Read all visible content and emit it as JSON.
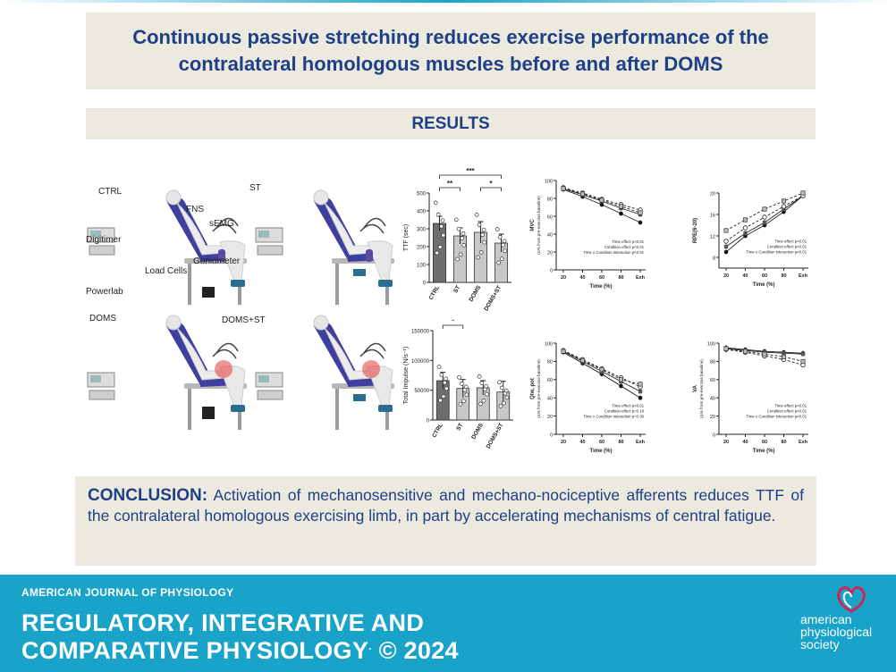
{
  "title": "Continuous passive stretching reduces exercise performance of the contralateral homologous muscles before and after DOMS",
  "results_heading": "RESULTS",
  "illustration": {
    "panels": [
      "CTRL",
      "ST",
      "DOMS",
      "DOMS+ST"
    ],
    "labels": [
      "FNS",
      "sEMG",
      "Digitimer",
      "Goniometer",
      "Load Cells",
      "Powerlab"
    ]
  },
  "conclusion": {
    "lead": "CONCLUSION:",
    "text": "Activation of mechanosensitive and mechano-nociceptive afferents reduces TTF of the contralateral homologous exercising limb, in part by accelerating mechanisms of central fatigue."
  },
  "footer": {
    "journal": "AMERICAN JOURNAL OF PHYSIOLOGY",
    "line1": "REGULATORY, INTEGRATIVE AND",
    "line2": "COMPARATIVE PHYSIOLOGY",
    "year": "© 2024",
    "society": [
      "american",
      "physiological",
      "society"
    ]
  },
  "colors": {
    "navy": "#1f3f86",
    "banner": "#eceadf",
    "footer": "#1aa3c9",
    "bar_dark": "#6e6e6e",
    "bar_light": "#c8c8c8",
    "limb_purple": "#5a4aa0"
  },
  "chart_data": [
    {
      "type": "bar",
      "id": "ttf",
      "ylabel": "TTF (sec)",
      "categories": [
        "CTRL",
        "ST",
        "DOMS",
        "DOMS+ST"
      ],
      "values": [
        330,
        260,
        280,
        220
      ],
      "errors": [
        40,
        45,
        60,
        50
      ],
      "ylim": [
        0,
        500
      ],
      "yticks": [
        0,
        100,
        200,
        300,
        400,
        500
      ],
      "significance": [
        {
          "from": 0,
          "to": 1,
          "label": "**",
          "level": 1
        },
        {
          "from": 2,
          "to": 3,
          "label": "*",
          "level": 1
        },
        {
          "from": 0,
          "to": 3,
          "label": "***",
          "level": 2
        }
      ]
    },
    {
      "type": "bar",
      "id": "impulse",
      "ylabel": "Total Impulse (N/s⁻¹)",
      "categories": [
        "CTRL",
        "ST",
        "DOMS",
        "DOMS+ST"
      ],
      "values": [
        66000,
        53000,
        54000,
        47000
      ],
      "errors": [
        14000,
        15000,
        12000,
        18000
      ],
      "ylim": [
        0,
        150000
      ],
      "yticks": [
        0,
        50000,
        100000,
        150000
      ],
      "significance": [
        {
          "from": 0,
          "to": 1,
          "label": "*",
          "level": 1
        },
        {
          "from": 0,
          "to": 3,
          "label": "**",
          "level": 2
        }
      ]
    },
    {
      "type": "line",
      "id": "mvc",
      "ylabel": "MVC",
      "ylabel2": "(Δ% from pre-exercise baseline)",
      "xlabel": "Time (%)",
      "x": [
        "20",
        "40",
        "60",
        "80",
        "Exh"
      ],
      "ylim": [
        0,
        100
      ],
      "yticks": [
        0,
        20,
        40,
        60,
        80,
        100
      ],
      "series": [
        {
          "values": [
            90,
            82,
            73,
            63,
            53
          ],
          "style": "solid",
          "marker": "filled-circle"
        },
        {
          "values": [
            91,
            84,
            77,
            69,
            62
          ],
          "style": "solid",
          "marker": "filled-square"
        },
        {
          "values": [
            92,
            86,
            79,
            73,
            67
          ],
          "style": "dash",
          "marker": "open-circle"
        },
        {
          "values": [
            91,
            85,
            78,
            71,
            64
          ],
          "style": "dash",
          "marker": "open-square"
        }
      ],
      "annotation": [
        "Time effect p<0.01",
        "Condition effect p<0.01",
        "Time x Condition interaction p<0.01"
      ]
    },
    {
      "type": "line",
      "id": "rpe",
      "ylabel": "RPE(6-20)",
      "xlabel": "Time (%)",
      "x": [
        "20",
        "40",
        "60",
        "80",
        "Exh"
      ],
      "ylim": [
        6,
        20
      ],
      "yticks": [
        8,
        12,
        16,
        20
      ],
      "series": [
        {
          "values": [
            9,
            12,
            14,
            16.5,
            19.5
          ],
          "style": "solid",
          "marker": "filled-circle"
        },
        {
          "values": [
            10,
            12.5,
            14.5,
            17,
            19.5
          ],
          "style": "solid",
          "marker": "filled-square"
        },
        {
          "values": [
            11,
            13.5,
            15.5,
            17.5,
            19.5
          ],
          "style": "dash",
          "marker": "open-circle"
        },
        {
          "values": [
            13,
            15,
            17,
            18.5,
            20
          ],
          "style": "dash",
          "marker": "open-square"
        }
      ],
      "annotation": [
        "Time effect p<0.01",
        "Condition effect p<0.01",
        "Time x Condition interaction p<0.01"
      ]
    },
    {
      "type": "line",
      "id": "qtw",
      "ylabel": "Qtw, pot",
      "ylabel2": "(Δ% from pre-exercise baseline)",
      "xlabel": "Time (%)",
      "x": [
        "20",
        "40",
        "60",
        "80",
        "Exh"
      ],
      "ylim": [
        0,
        100
      ],
      "yticks": [
        0,
        20,
        40,
        60,
        80,
        100
      ],
      "series": [
        {
          "values": [
            90,
            78,
            66,
            53,
            40
          ],
          "style": "solid",
          "marker": "filled-circle"
        },
        {
          "values": [
            91,
            80,
            69,
            58,
            47
          ],
          "style": "solid",
          "marker": "filled-square"
        },
        {
          "values": [
            92,
            82,
            72,
            62,
            52
          ],
          "style": "dash",
          "marker": "open-circle"
        },
        {
          "values": [
            91,
            81,
            71,
            60,
            55
          ],
          "style": "dash",
          "marker": "open-square"
        }
      ],
      "annotation": [
        "Time effect p<0.01",
        "Condition effect p=0.18",
        "Time x Condition interaction p=0.30"
      ]
    },
    {
      "type": "line",
      "id": "va",
      "ylabel": "VA",
      "ylabel2": "(Δ% from pre-exercise baseline)",
      "xlabel": "Time (%)",
      "x": [
        "20",
        "40",
        "60",
        "80",
        "Exh"
      ],
      "ylim": [
        0,
        100
      ],
      "yticks": [
        0,
        20,
        40,
        60,
        80,
        100
      ],
      "series": [
        {
          "values": [
            95,
            93,
            91,
            90,
            89
          ],
          "style": "solid",
          "marker": "filled-circle"
        },
        {
          "values": [
            94,
            92,
            90,
            89,
            88
          ],
          "style": "solid",
          "marker": "filled-square"
        },
        {
          "values": [
            93,
            90,
            86,
            82,
            76
          ],
          "style": "dash",
          "marker": "open-circle"
        },
        {
          "values": [
            94,
            91,
            88,
            85,
            80
          ],
          "style": "dash",
          "marker": "open-square"
        }
      ],
      "annotation": [
        "Time effect p<0.01",
        "Condition effect p<0.01",
        "Time x Condition interaction p<0.01"
      ]
    }
  ]
}
